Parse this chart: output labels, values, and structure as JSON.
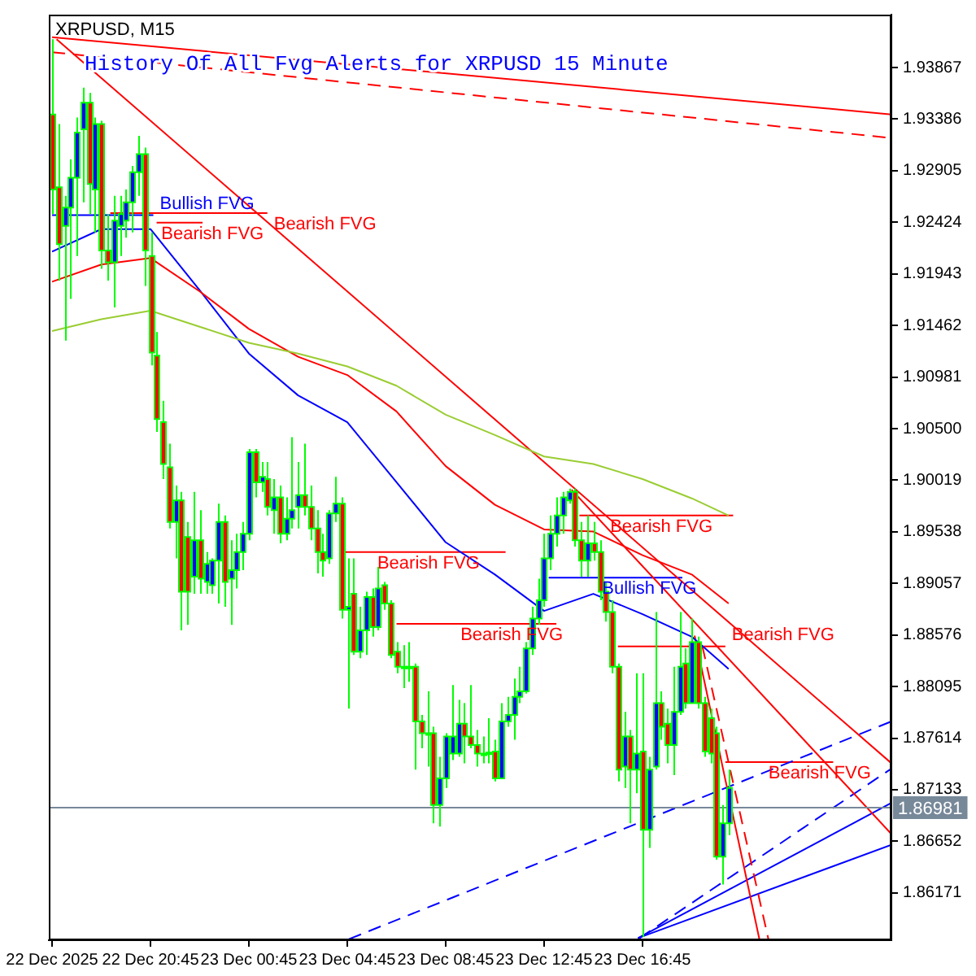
{
  "chart_data": {
    "type": "candlestick",
    "title": "XRPUSD, M15",
    "annotations": [
      "History Of All Fvg Alerts for XRPUSD 15 Minute"
    ],
    "color": "#00ff00",
    "x": [
      "2025-12-22T16:45",
      "2025-12-22T17:00",
      "2025-12-22T17:15",
      "2025-12-22T17:30",
      "2025-12-22T17:45",
      "2025-12-22T18:00",
      "2025-12-22T18:15",
      "2025-12-22T18:30",
      "2025-12-22T18:45",
      "2025-12-22T19:00",
      "2025-12-22T19:15",
      "2025-12-22T19:30",
      "2025-12-22T19:45",
      "2025-12-22T20:00",
      "2025-12-22T20:15",
      "2025-12-22T20:30",
      "2025-12-22T20:45",
      "2025-12-22T21:00",
      "2025-12-22T21:15",
      "2025-12-22T21:30",
      "2025-12-22T21:45",
      "2025-12-22T22:00",
      "2025-12-22T22:15",
      "2025-12-22T22:30",
      "2025-12-22T22:45",
      "2025-12-22T23:00",
      "2025-12-22T23:15",
      "2025-12-22T23:30",
      "2025-12-22T23:45",
      "2025-12-23T00:00",
      "2025-12-23T00:15",
      "2025-12-23T00:30",
      "2025-12-23T00:45",
      "2025-12-23T01:00",
      "2025-12-23T01:15",
      "2025-12-23T01:30",
      "2025-12-23T01:45",
      "2025-12-23T02:00",
      "2025-12-23T02:15",
      "2025-12-23T02:30",
      "2025-12-23T02:45",
      "2025-12-23T03:00",
      "2025-12-23T03:15",
      "2025-12-23T03:30",
      "2025-12-23T03:45",
      "2025-12-23T04:00",
      "2025-12-23T04:15",
      "2025-12-23T04:30",
      "2025-12-23T04:45",
      "2025-12-23T05:00",
      "2025-12-23T05:15",
      "2025-12-23T05:30",
      "2025-12-23T05:45",
      "2025-12-23T06:00",
      "2025-12-23T06:15",
      "2025-12-23T06:30",
      "2025-12-23T06:45",
      "2025-12-23T07:00",
      "2025-12-23T07:15",
      "2025-12-23T07:30",
      "2025-12-23T07:45",
      "2025-12-23T08:00",
      "2025-12-23T08:15",
      "2025-12-23T08:30",
      "2025-12-23T08:45",
      "2025-12-23T09:00",
      "2025-12-23T09:15",
      "2025-12-23T09:30",
      "2025-12-23T09:45",
      "2025-12-23T10:00",
      "2025-12-23T10:15",
      "2025-12-23T10:30",
      "2025-12-23T10:45",
      "2025-12-23T11:00",
      "2025-12-23T11:15",
      "2025-12-23T11:30",
      "2025-12-23T11:45",
      "2025-12-23T12:00",
      "2025-12-23T12:15",
      "2025-12-23T12:30",
      "2025-12-23T12:45",
      "2025-12-23T13:00",
      "2025-12-23T13:15",
      "2025-12-23T13:30",
      "2025-12-23T13:45",
      "2025-12-23T14:00",
      "2025-12-23T14:15",
      "2025-12-23T14:30",
      "2025-12-23T14:45",
      "2025-12-23T15:00",
      "2025-12-23T15:15",
      "2025-12-23T15:30",
      "2025-12-23T15:45",
      "2025-12-23T16:00",
      "2025-12-23T16:15",
      "2025-12-23T16:30",
      "2025-12-23T16:45",
      "2025-12-23T17:00",
      "2025-12-23T17:15",
      "2025-12-23T17:30",
      "2025-12-23T17:45",
      "2025-12-23T18:00",
      "2025-12-23T18:15",
      "2025-12-23T18:30",
      "2025-12-23T18:45",
      "2025-12-23T19:00",
      "2025-12-23T19:15",
      "2025-12-23T19:30",
      "2025-12-23T19:45",
      "2025-12-23T20:00",
      "2025-12-23T20:15"
    ],
    "ohlc": [
      [
        1.9343,
        1.9413,
        1.925,
        1.9273
      ],
      [
        1.9275,
        1.9334,
        1.9188,
        1.9222
      ],
      [
        1.9239,
        1.9267,
        1.9132,
        1.9256
      ],
      [
        1.9256,
        1.9301,
        1.9171,
        1.9284
      ],
      [
        1.9284,
        1.934,
        1.9211,
        1.9326
      ],
      [
        1.9329,
        1.9368,
        1.9261,
        1.9354
      ],
      [
        1.9354,
        1.9363,
        1.925,
        1.9278
      ],
      [
        1.9273,
        1.934,
        1.9233,
        1.9334
      ],
      [
        1.9334,
        1.9337,
        1.9199,
        1.9216
      ],
      [
        1.9216,
        1.925,
        1.9188,
        1.9205
      ],
      [
        1.9205,
        1.9267,
        1.9163,
        1.9244
      ],
      [
        1.9239,
        1.9267,
        1.9211,
        1.925
      ],
      [
        1.9244,
        1.9273,
        1.9228,
        1.9261
      ],
      [
        1.9261,
        1.9295,
        1.9233,
        1.9289
      ],
      [
        1.9289,
        1.9323,
        1.9267,
        1.9306
      ],
      [
        1.9306,
        1.9312,
        1.9183,
        1.9216
      ],
      [
        1.9211,
        1.9233,
        1.9109,
        1.9121
      ],
      [
        1.9118,
        1.914,
        1.9047,
        1.9059
      ],
      [
        1.9056,
        1.9076,
        1.9003,
        1.9017
      ],
      [
        1.9014,
        1.9036,
        1.8957,
        1.8963
      ],
      [
        1.8963,
        1.8997,
        1.8929,
        1.8983
      ],
      [
        1.8983,
        1.8991,
        1.8862,
        1.8898
      ],
      [
        1.8949,
        1.8963,
        1.8867,
        1.8898
      ],
      [
        1.8912,
        1.8991,
        1.8896,
        1.8946
      ],
      [
        1.8946,
        1.8974,
        1.8896,
        1.891
      ],
      [
        1.8907,
        1.8935,
        1.8896,
        1.8924
      ],
      [
        1.8904,
        1.8929,
        1.8896,
        1.8927
      ],
      [
        1.8927,
        1.898,
        1.8887,
        1.8963
      ],
      [
        1.8963,
        1.8969,
        1.8884,
        1.8907
      ],
      [
        1.891,
        1.8946,
        1.8867,
        1.8918
      ],
      [
        1.8918,
        1.8952,
        1.8901,
        1.8935
      ],
      [
        1.8935,
        1.8963,
        1.8918,
        1.8952
      ],
      [
        1.8952,
        1.9031,
        1.8946,
        1.9028
      ],
      [
        1.9028,
        1.9031,
        1.8986,
        1.9
      ],
      [
        1.9,
        1.9019,
        1.8991,
        1.9005
      ],
      [
        1.9003,
        1.9019,
        1.8969,
        1.8977
      ],
      [
        1.8974,
        1.9003,
        1.8952,
        1.8986
      ],
      [
        1.8986,
        1.8997,
        1.8943,
        1.8952
      ],
      [
        1.8952,
        1.8986,
        1.8946,
        1.8966
      ],
      [
        1.8966,
        1.9042,
        1.8957,
        1.8974
      ],
      [
        1.8977,
        1.9019,
        1.8957,
        1.8988
      ],
      [
        1.8988,
        1.9036,
        1.8969,
        1.8977
      ],
      [
        1.8977,
        1.8997,
        1.8946,
        1.8957
      ],
      [
        1.8957,
        1.8974,
        1.8915,
        1.8935
      ],
      [
        1.8935,
        1.8952,
        1.8912,
        1.8927
      ],
      [
        1.8929,
        1.8974,
        1.8924,
        1.8971
      ],
      [
        1.8971,
        1.9005,
        1.8963,
        1.898
      ],
      [
        1.898,
        1.8986,
        1.8873,
        1.8881
      ],
      [
        1.8881,
        1.8929,
        1.8789,
        1.8884
      ],
      [
        1.8896,
        1.8929,
        1.8839,
        1.8842
      ],
      [
        1.8842,
        1.8884,
        1.8836,
        1.8862
      ],
      [
        1.8862,
        1.8898,
        1.8839,
        1.8893
      ],
      [
        1.8893,
        1.8901,
        1.8856,
        1.8865
      ],
      [
        1.8865,
        1.8921,
        1.8862,
        1.8901
      ],
      [
        1.8904,
        1.8907,
        1.8881,
        1.8887
      ],
      [
        1.8887,
        1.889,
        1.8836,
        1.8839
      ],
      [
        1.8842,
        1.8851,
        1.8822,
        1.8828
      ],
      [
        1.8828,
        1.8848,
        1.8808,
        1.8828
      ],
      [
        1.8828,
        1.8851,
        1.8814,
        1.8828
      ],
      [
        1.8828,
        1.8831,
        1.8732,
        1.8777
      ],
      [
        1.8777,
        1.8783,
        1.8752,
        1.8766
      ],
      [
        1.8766,
        1.8805,
        1.8735,
        1.8766
      ],
      [
        1.8766,
        1.8772,
        1.8682,
        1.8699
      ],
      [
        1.8699,
        1.8744,
        1.8679,
        1.8724
      ],
      [
        1.8724,
        1.8766,
        1.8715,
        1.8763
      ],
      [
        1.8747,
        1.8811,
        1.8741,
        1.8763
      ],
      [
        1.8747,
        1.8797,
        1.8744,
        1.8775
      ],
      [
        1.8775,
        1.8794,
        1.8738,
        1.8763
      ],
      [
        1.8763,
        1.8811,
        1.8752,
        1.8755
      ],
      [
        1.8755,
        1.8769,
        1.8735,
        1.8747
      ],
      [
        1.8747,
        1.8763,
        1.8738,
        1.8747
      ],
      [
        1.8748,
        1.878,
        1.8738,
        1.8748
      ],
      [
        1.8749,
        1.876,
        1.8721,
        1.8724
      ],
      [
        1.8724,
        1.8794,
        1.8724,
        1.8777
      ],
      [
        1.8777,
        1.88,
        1.8772,
        1.8783
      ],
      [
        1.8783,
        1.8817,
        1.876,
        1.88
      ],
      [
        1.88,
        1.8828,
        1.8794,
        1.8805
      ],
      [
        1.8805,
        1.8851,
        1.8803,
        1.8845
      ],
      [
        1.8845,
        1.8884,
        1.8839,
        1.8873
      ],
      [
        1.8873,
        1.891,
        1.8867,
        1.889
      ],
      [
        1.889,
        1.8952,
        1.8884,
        1.8929
      ],
      [
        1.8929,
        1.8969,
        1.8918,
        1.8952
      ],
      [
        1.8952,
        1.8986,
        1.894,
        1.8969
      ],
      [
        1.8969,
        1.8991,
        1.8952,
        1.8986
      ],
      [
        1.8983,
        1.8994,
        1.898,
        1.8991
      ],
      [
        1.8991,
        1.8994,
        1.894,
        1.8946
      ],
      [
        1.8946,
        1.8963,
        1.8912,
        1.8927
      ],
      [
        1.8927,
        1.8969,
        1.8912,
        1.8943
      ],
      [
        1.8943,
        1.8963,
        1.8927,
        1.8935
      ],
      [
        1.8935,
        1.8946,
        1.889,
        1.8898
      ],
      [
        1.8898,
        1.8907,
        1.887,
        1.8879
      ],
      [
        1.8879,
        1.889,
        1.8822,
        1.8828
      ],
      [
        1.8828,
        1.8831,
        1.8721,
        1.8732
      ],
      [
        1.8735,
        1.8786,
        1.8715,
        1.8763
      ],
      [
        1.8763,
        1.8769,
        1.8682,
        1.8732
      ],
      [
        1.8732,
        1.8822,
        1.871,
        1.8747
      ],
      [
        1.8749,
        1.8822,
        1.8576,
        1.8676
      ],
      [
        1.8676,
        1.8744,
        1.8659,
        1.8732
      ],
      [
        1.8735,
        1.8879,
        1.8732,
        1.8794
      ],
      [
        1.8794,
        1.8805,
        1.876,
        1.8772
      ],
      [
        1.8775,
        1.8789,
        1.8738,
        1.8755
      ],
      [
        1.8755,
        1.8828,
        1.8727,
        1.8786
      ],
      [
        1.8786,
        1.8879,
        1.8783,
        1.8828
      ],
      [
        1.8831,
        1.8845,
        1.8789,
        1.8794
      ],
      [
        1.8794,
        1.8873,
        1.8794,
        1.8851
      ],
      [
        1.8851,
        1.8856,
        1.8789,
        1.8794
      ],
      [
        1.8794,
        1.88,
        1.8744,
        1.8749
      ],
      [
        1.878,
        1.8789,
        1.8738,
        1.8747
      ],
      [
        1.8766,
        1.8772,
        1.8648,
        1.8651
      ],
      [
        1.8651,
        1.8699,
        1.8625,
        1.8682
      ],
      [
        1.8682,
        1.8732,
        1.8671,
        1.8715
      ]
    ],
    "colors": [
      "#ff0000",
      "#ff0000",
      "#0000ff",
      "#0000ff",
      "#0000ff",
      "#0000ff",
      "#ff0000",
      "#0000ff",
      "#ff0000",
      "#ff0000",
      "#0000ff",
      "#0000ff",
      "#0000ff",
      "#0000ff",
      "#0000ff",
      "#ff0000",
      "#ff0000",
      "#ff0000",
      "#ff0000",
      "#ff0000",
      "#0000ff",
      "#ff0000",
      "#ff0000",
      "#0000ff",
      "#ff0000",
      "#0000ff",
      "#0000ff",
      "#0000ff",
      "#ff0000",
      "#0000ff",
      "#0000ff",
      "#0000ff",
      "#0000ff",
      "#ff0000",
      "#0000ff",
      "#ff0000",
      "#0000ff",
      "#ff0000",
      "#0000ff",
      "#0000ff",
      "#0000ff",
      "#ff0000",
      "#ff0000",
      "#ff0000",
      "#ff0000",
      "#0000ff",
      "#0000ff",
      "#ff0000",
      "#0000ff",
      "#ff0000",
      "#0000ff",
      "#0000ff",
      "#ff0000",
      "#0000ff",
      "#ff0000",
      "#ff0000",
      "#ff0000",
      "#ff0000",
      "#ff0000",
      "#ff0000",
      "#ff0000",
      "#ff0000",
      "#ff0000",
      "#0000ff",
      "#0000ff",
      "#0000ff",
      "#0000ff",
      "#ff0000",
      "#ff0000",
      "#ff0000",
      "#ff0000",
      "#ff0000",
      "#ff0000",
      "#0000ff",
      "#0000ff",
      "#0000ff",
      "#0000ff",
      "#0000ff",
      "#0000ff",
      "#0000ff",
      "#0000ff",
      "#0000ff",
      "#0000ff",
      "#0000ff",
      "#0000ff",
      "#ff0000",
      "#ff0000",
      "#0000ff",
      "#ff0000",
      "#ff0000",
      "#ff0000",
      "#ff0000",
      "#ff0000",
      "#0000ff",
      "#ff0000",
      "#0000ff",
      "#ff0000",
      "#0000ff",
      "#0000ff",
      "#ff0000",
      "#ff0000",
      "#0000ff",
      "#0000ff",
      "#ff0000",
      "#0000ff",
      "#ff0000",
      "#ff0000",
      "#ff0000",
      "#ff0000",
      "#0000ff",
      "#0000ff"
    ],
    "series": [
      {
        "type": "line",
        "color": "#9acd32",
        "x": [
          "2025-12-22T16:45",
          "2025-12-22T18:45",
          "2025-12-22T20:45",
          "2025-12-22T22:45",
          "2025-12-23T00:45",
          "2025-12-23T02:45",
          "2025-12-23T04:45",
          "2025-12-23T06:45",
          "2025-12-23T08:45",
          "2025-12-23T10:45",
          "2025-12-23T12:45",
          "2025-12-23T14:45",
          "2025-12-23T16:45",
          "2025-12-23T18:45",
          "2025-12-23T20:15"
        ],
        "values": [
          1.9141,
          1.9152,
          1.916,
          1.9145,
          1.913,
          1.912,
          1.9108,
          1.909,
          1.9063,
          1.9044,
          1.9024,
          1.9017,
          1.9003,
          1.8985,
          1.8969
        ]
      },
      {
        "type": "line",
        "color": "#ff0000",
        "x": [
          "2025-12-22T16:45",
          "2025-12-22T18:45",
          "2025-12-22T20:45",
          "2025-12-22T22:45",
          "2025-12-23T00:45",
          "2025-12-23T02:45",
          "2025-12-23T04:45",
          "2025-12-23T06:45",
          "2025-12-23T08:45",
          "2025-12-23T10:45",
          "2025-12-23T12:45",
          "2025-12-23T14:45",
          "2025-12-23T16:45",
          "2025-12-23T18:45",
          "2025-12-23T20:15"
        ],
        "values": [
          1.9187,
          1.9203,
          1.9209,
          1.9178,
          1.9143,
          1.9117,
          1.91,
          1.9066,
          1.9015,
          1.8979,
          1.8956,
          1.8954,
          1.8932,
          1.8914,
          1.8887
        ]
      },
      {
        "type": "line",
        "color": "#0000ff",
        "x": [
          "2025-12-22T16:45",
          "2025-12-22T18:45",
          "2025-12-22T20:45",
          "2025-12-22T22:45",
          "2025-12-23T00:45",
          "2025-12-23T02:45",
          "2025-12-23T04:45",
          "2025-12-23T06:45",
          "2025-12-23T08:45",
          "2025-12-23T10:45",
          "2025-12-23T12:45",
          "2025-12-23T14:45",
          "2025-12-23T16:45",
          "2025-12-23T18:45",
          "2025-12-23T20:15"
        ],
        "values": [
          1.9215,
          1.9236,
          1.9236,
          1.9179,
          1.912,
          1.9081,
          1.9056,
          1.9,
          1.8944,
          1.8914,
          1.888,
          1.8896,
          1.8877,
          1.8856,
          1.8826
        ]
      },
      {
        "type": "line",
        "color": "#ff0000",
        "x": [
          "2025-12-22T16:45",
          "2025-12-24T02:52"
        ],
        "values": [
          1.9415,
          1.9343
        ]
      },
      {
        "type": "line",
        "color": "#ff0000",
        "line_style": "dashed",
        "x": [
          "2025-12-22T16:45",
          "2025-12-24T02:52"
        ],
        "values": [
          1.9401,
          1.9321
        ]
      },
      {
        "type": "line",
        "color": "#ff0000",
        "x": [
          "2025-12-22T16:56",
          "2025-12-24T02:52"
        ],
        "values": [
          1.9413,
          1.8738
        ]
      },
      {
        "type": "line",
        "color": "#ff0000",
        "x": [
          "2025-12-23T13:52",
          "2025-12-24T02:52"
        ],
        "values": [
          1.8993,
          1.8672
        ]
      },
      {
        "type": "line",
        "color": "#ff0000",
        "x": [
          "2025-12-23T18:52",
          "2025-12-23T21:30"
        ],
        "values": [
          1.8857,
          1.8574
        ]
      },
      {
        "type": "line",
        "color": "#ff0000",
        "line_style": "dashed",
        "x": [
          "2025-12-23T19:11",
          "2025-12-23T21:52"
        ],
        "values": [
          1.8847,
          1.8574
        ]
      },
      {
        "type": "line",
        "color": "#0000ff",
        "line_style": "dashed",
        "x": [
          "2025-12-23T04:49",
          "2025-12-24T02:52"
        ],
        "values": [
          1.8574,
          1.8777
        ]
      },
      {
        "type": "line",
        "color": "#0000ff",
        "line_style": "dashed",
        "x": [
          "2025-12-23T16:38",
          "2025-12-24T02:52"
        ],
        "values": [
          1.8575,
          1.8733
        ]
      },
      {
        "type": "line",
        "color": "#0000ff",
        "x": [
          "2025-12-23T16:34",
          "2025-12-24T02:52"
        ],
        "values": [
          1.8575,
          1.8701
        ]
      },
      {
        "type": "line",
        "color": "#0000ff",
        "x": [
          "2025-12-23T16:34",
          "2025-12-24T02:52"
        ],
        "values": [
          1.8575,
          1.8662
        ]
      },
      {
        "type": "line",
        "name": "Bullish FVG",
        "color": "#0000ff",
        "x": [
          "2025-12-22T16:45",
          "2025-12-22T20:52"
        ],
        "values": [
          1.9249,
          1.9249
        ]
      },
      {
        "type": "line",
        "name": "Bearish FVG",
        "color": "#ff0000",
        "x": [
          "2025-12-22T19:07",
          "2025-12-23T01:30"
        ],
        "values": [
          1.9251,
          1.9251
        ]
      },
      {
        "type": "line",
        "name": "Bearish FVG",
        "color": "#ff0000",
        "x": [
          "2025-12-22T21:00",
          "2025-12-22T22:52"
        ],
        "values": [
          1.9242,
          1.9242
        ]
      },
      {
        "type": "line",
        "name": "Bearish FVG",
        "color": "#ff0000",
        "x": [
          "2025-12-23T04:40",
          "2025-12-23T11:11"
        ],
        "values": [
          1.8935,
          1.8935
        ]
      },
      {
        "type": "line",
        "name": "Bearish FVG",
        "color": "#ff0000",
        "x": [
          "2025-12-23T06:45",
          "2025-12-23T13:15"
        ],
        "values": [
          1.8868,
          1.8868
        ]
      },
      {
        "type": "line",
        "name": "Bearish FVG",
        "color": "#ff0000",
        "x": [
          "2025-12-23T14:11",
          "2025-12-23T20:26"
        ],
        "values": [
          1.8969,
          1.8969
        ]
      },
      {
        "type": "line",
        "name": "Bullish FVG",
        "color": "#0000ff",
        "x": [
          "2025-12-23T12:56",
          "2025-12-23T18:22"
        ],
        "values": [
          1.8911,
          1.8911
        ]
      },
      {
        "type": "line",
        "name": "Bearish FVG",
        "color": "#ff0000",
        "x": [
          "2025-12-23T15:45",
          "2025-12-23T20:07"
        ],
        "values": [
          1.8847,
          1.8847
        ]
      },
      {
        "type": "line",
        "name": "Bearish FVG",
        "color": "#ff0000",
        "x": [
          "2025-12-23T20:07",
          "2025-12-24T00:30"
        ],
        "values": [
          1.8739,
          1.8739
        ]
      }
    ],
    "ref_lines": [
      {
        "axis": "y",
        "value": 1.86981,
        "label": "1.86981",
        "color": "#778899"
      }
    ],
    "xlim": [
      "2025-12-22T16:37",
      "2025-12-24T02:52"
    ],
    "xticks": [
      {
        "value": "2025-12-22T16:45",
        "label": "22 Dec 2025"
      },
      {
        "value": "2025-12-22T20:45",
        "label": "22 Dec 20:45"
      },
      {
        "value": "2025-12-23T00:45",
        "label": "23 Dec 00:45"
      },
      {
        "value": "2025-12-23T04:45",
        "label": "23 Dec 04:45"
      },
      {
        "value": "2025-12-23T08:45",
        "label": "23 Dec 08:45"
      },
      {
        "value": "2025-12-23T12:45",
        "label": "23 Dec 12:45"
      },
      {
        "value": "2025-12-23T16:45",
        "label": "23 Dec 16:45"
      }
    ],
    "ylim": [
      1.8573,
      1.9436
    ],
    "yticks": [
      1.86171,
      1.86652,
      1.87133,
      1.87614,
      1.88095,
      1.88576,
      1.89057,
      1.89538,
      1.90019,
      {
        "value": 1.905,
        "label": "1.90500"
      },
      1.90981,
      1.91462,
      1.91943,
      1.92424,
      1.92905,
      1.93386,
      1.93867
    ]
  }
}
